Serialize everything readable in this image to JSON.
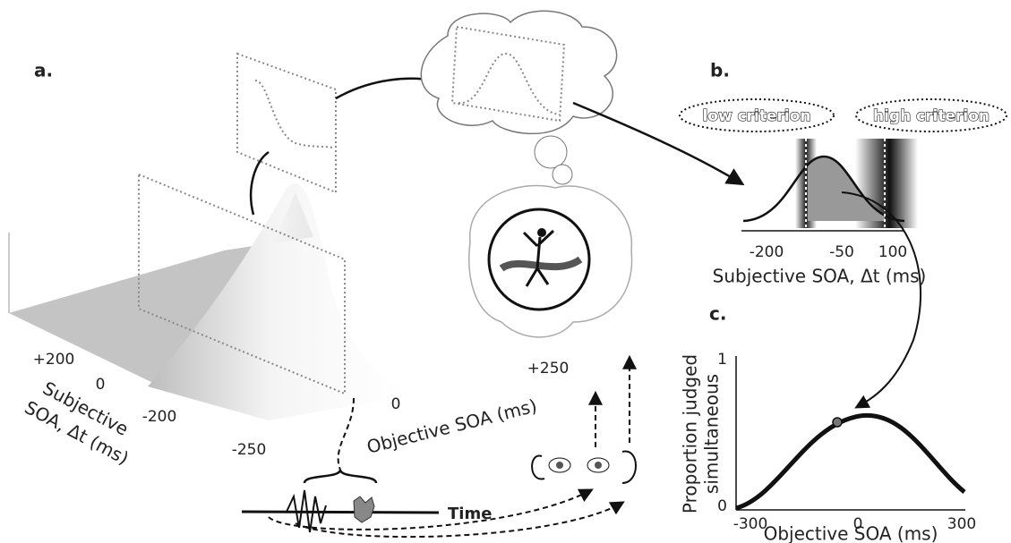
{
  "panels": {
    "a": {
      "label": "a.",
      "y_axis": {
        "title": [
          "Subjective",
          "SOA, Δt (ms)"
        ],
        "ticks": [
          "+200",
          "0",
          "-200"
        ]
      },
      "x_axis": {
        "title": "Objective SOA (ms)",
        "ticks": [
          "+250",
          "0",
          "-250"
        ]
      },
      "time_label": "Time"
    },
    "b": {
      "label": "b.",
      "criteria": [
        "low criterion",
        "high criterion"
      ],
      "x_ticks": [
        "-200",
        "-50",
        "100"
      ],
      "x_title": "Subjective SOA, Δt (ms)"
    },
    "c": {
      "label": "c.",
      "y_title": [
        "Proportion judged",
        "simultaneous"
      ],
      "y_ticks": [
        "1",
        "0"
      ],
      "x_ticks": [
        "-300",
        "0",
        "300"
      ],
      "x_title": "Objective SOA (ms)"
    }
  }
}
